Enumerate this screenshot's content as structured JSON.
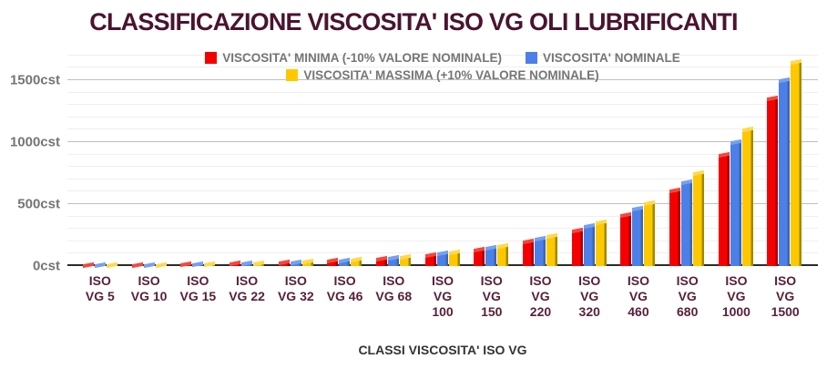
{
  "chart_data": {
    "type": "bar",
    "title": "CLASSIFICAZIONE VISCOSITA' ISO VG OLI LUBRIFICANTI",
    "xlabel": "CLASSI VISCOSITA' ISO VG",
    "ylabel": "cst",
    "legend_position": "top",
    "grid": true,
    "ylim": [
      0,
      1720
    ],
    "grid_max": 1700,
    "minor_grid_step": 100,
    "major_grid_step": 500,
    "y_ticks": [
      {
        "value": 0,
        "label": "0cst"
      },
      {
        "value": 500,
        "label": "500cst"
      },
      {
        "value": 1000,
        "label": "1000cst"
      },
      {
        "value": 1500,
        "label": "1500cst"
      }
    ],
    "categories": [
      "ISO VG 5",
      "ISO VG 10",
      "ISO VG 15",
      "ISO VG 22",
      "ISO VG 32",
      "ISO VG 46",
      "ISO VG 68",
      "ISO VG 100",
      "ISO VG 150",
      "ISO VG 220",
      "ISO VG 320",
      "ISO VG 460",
      "ISO VG 680",
      "ISO VG 1000",
      "ISO VG 1500"
    ],
    "category_label_lines": [
      [
        "ISO",
        "VG 5"
      ],
      [
        "ISO",
        "VG 10"
      ],
      [
        "ISO",
        "VG 15"
      ],
      [
        "ISO",
        "VG 22"
      ],
      [
        "ISO",
        "VG 32"
      ],
      [
        "ISO",
        "VG 46"
      ],
      [
        "ISO",
        "VG 68"
      ],
      [
        "ISO",
        "VG",
        "100"
      ],
      [
        "ISO",
        "VG",
        "150"
      ],
      [
        "ISO",
        "VG",
        "220"
      ],
      [
        "ISO",
        "VG",
        "320"
      ],
      [
        "ISO",
        "VG",
        "460"
      ],
      [
        "ISO",
        "VG",
        "680"
      ],
      [
        "ISO",
        "VG",
        "1000"
      ],
      [
        "ISO",
        "VG",
        "1500"
      ]
    ],
    "series": [
      {
        "name": "VISCOSITA' MINIMA (-10% VALORE NOMINALE)",
        "color": "#f50000",
        "dark": "#a80000",
        "cap": "#f4483c",
        "values": [
          4.5,
          9,
          13.5,
          19.8,
          28.8,
          41.4,
          61.2,
          90,
          135,
          198,
          288,
          414,
          612,
          900,
          1350
        ]
      },
      {
        "name": "VISCOSITA' NOMINALE",
        "color": "#4c80e8",
        "dark": "#3d65b3",
        "cap": "#76a0ef",
        "values": [
          5,
          10,
          15,
          22,
          32,
          46,
          68,
          100,
          150,
          220,
          320,
          460,
          680,
          1000,
          1500
        ]
      },
      {
        "name": "VISCOSITA' MASSIMA (+10% VALORE NOMINALE)",
        "color": "#fec800",
        "dark": "#a08a00",
        "cap": "#ffd94d",
        "values": [
          5.5,
          11,
          16.5,
          24.2,
          35.2,
          50.6,
          74.8,
          110,
          165,
          242,
          352,
          506,
          748,
          1100,
          1650
        ]
      }
    ],
    "colors": {
      "title": "#4a142f",
      "category_labels": "#58203a",
      "axis_text": "#757575",
      "axis_title": "#333333",
      "major_grid": "#c0c0c0",
      "minor_grid": "#efefef",
      "baseline": "#2b2b2b",
      "background": "#ffffff"
    }
  }
}
